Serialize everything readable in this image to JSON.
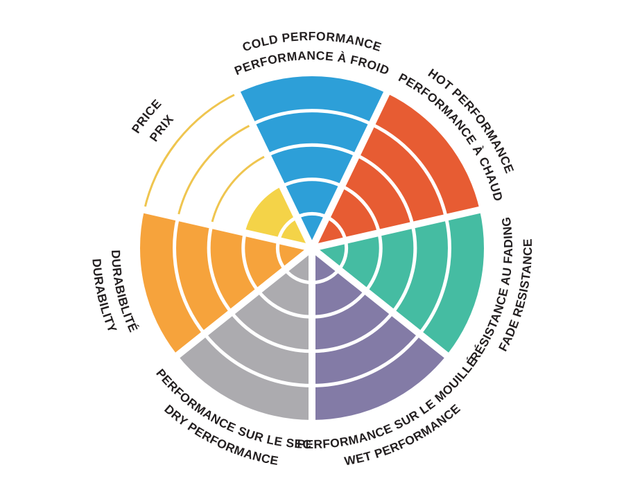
{
  "page": {
    "background_color": "#ffffff",
    "description": "Tire performance rating wheel, 7 criteria scored out of 5 rings"
  },
  "chart_data": {
    "type": "polar_sector_wheel",
    "rings": 5,
    "max_value": 5,
    "direction": "clockwise",
    "first_sector_position": "top-center",
    "divider_color": "#ffffff",
    "text_color": "#231f20",
    "legend_position": "labels-around-rim",
    "grid": "concentric-ring-dividers",
    "sectors": [
      {
        "id": "cold-performance",
        "label_en": "COLD PERFORMANCE",
        "label_fr": "PERFORMANCE À FROID",
        "color": "#2d9fd8",
        "value": 5,
        "label_orientation": "top"
      },
      {
        "id": "hot-performance",
        "label_en": "HOT PERFORMANCE",
        "label_fr": "PERFORMANCE À CHAUD",
        "color": "#e75c33",
        "value": 5,
        "label_orientation": "top"
      },
      {
        "id": "fade-resistance",
        "label_en": "FADE RESISTANCE",
        "label_fr": "RÉSISTANCE AU FADING",
        "color": "#45bca2",
        "value": 5,
        "label_orientation": "bottom"
      },
      {
        "id": "wet-performance",
        "label_en": "WET PERFORMANCE",
        "label_fr": "PERFORMANCE SUR LE MOUILLÉ",
        "color": "#837ba6",
        "value": 5,
        "label_orientation": "bottom"
      },
      {
        "id": "dry-performance",
        "label_en": "DRY PERFORMANCE",
        "label_fr": "PERFORMANCE SUR LE SEC",
        "color": "#acabaf",
        "value": 5,
        "label_orientation": "bottom"
      },
      {
        "id": "durability",
        "label_en": "DURABILITY",
        "label_fr": "DURABIBLITÉ",
        "color": "#f6a33c",
        "value": 5,
        "label_orientation": "bottom"
      },
      {
        "id": "price",
        "label_en": "PRICE",
        "label_fr": "PRIX",
        "color": "#f4d348",
        "outline_color": "#efc54f",
        "value": 2,
        "label_orientation": "top"
      }
    ]
  }
}
